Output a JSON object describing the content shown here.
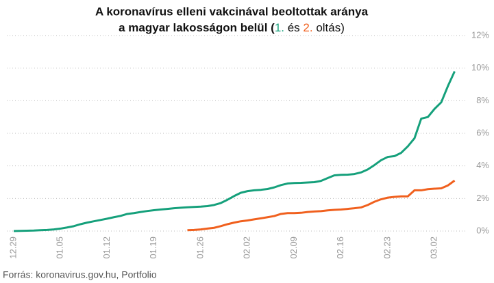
{
  "chart_data": {
    "type": "line",
    "title": [
      "A koronavírus elleni vakcinával beoltottak aránya",
      "a magyar lakosságon belül (",
      "1.",
      " és ",
      "2.",
      " oltás)"
    ],
    "source": "Forrás: koronavirus.gov.hu, Portfolio",
    "categories": [
      "12.29",
      null,
      null,
      null,
      null,
      null,
      null,
      "01.05",
      null,
      null,
      null,
      null,
      null,
      null,
      "01.12",
      null,
      null,
      null,
      null,
      null,
      null,
      "01.19",
      null,
      null,
      null,
      null,
      null,
      null,
      "01.26",
      null,
      null,
      null,
      null,
      null,
      null,
      "02.02",
      null,
      null,
      null,
      null,
      null,
      null,
      "02.09",
      null,
      null,
      null,
      null,
      null,
      null,
      "02.16",
      null,
      null,
      null,
      null,
      null,
      null,
      "02.23",
      null,
      null,
      null,
      null,
      null,
      null,
      "03.02",
      null,
      null,
      null
    ],
    "series": [
      {
        "name": "1.",
        "color": "#15a07b",
        "values": [
          0,
          0.01,
          0.02,
          0.03,
          0.05,
          0.07,
          0.1,
          0.15,
          0.22,
          0.3,
          0.42,
          0.52,
          0.6,
          0.68,
          0.76,
          0.85,
          0.93,
          1.05,
          1.1,
          1.17,
          1.23,
          1.28,
          1.32,
          1.36,
          1.4,
          1.43,
          1.46,
          1.48,
          1.5,
          1.53,
          1.6,
          1.72,
          1.92,
          2.15,
          2.35,
          2.45,
          2.5,
          2.53,
          2.58,
          2.68,
          2.82,
          2.92,
          2.95,
          2.96,
          2.98,
          3.0,
          3.08,
          3.25,
          3.42,
          3.45,
          3.46,
          3.5,
          3.6,
          3.78,
          4.05,
          4.35,
          4.55,
          4.6,
          4.8,
          5.2,
          5.7,
          6.9,
          7.0,
          7.5,
          7.9,
          8.9,
          9.8
        ]
      },
      {
        "name": "2.",
        "color": "#f0601e",
        "values": [
          null,
          null,
          null,
          null,
          null,
          null,
          null,
          null,
          null,
          null,
          null,
          null,
          null,
          null,
          null,
          null,
          null,
          null,
          null,
          null,
          null,
          null,
          null,
          null,
          null,
          null,
          0.05,
          0.07,
          0.1,
          0.15,
          0.2,
          0.3,
          0.42,
          0.52,
          0.6,
          0.65,
          0.72,
          0.78,
          0.85,
          0.92,
          1.05,
          1.1,
          1.1,
          1.12,
          1.17,
          1.2,
          1.22,
          1.27,
          1.3,
          1.32,
          1.36,
          1.4,
          1.45,
          1.6,
          1.8,
          1.95,
          2.05,
          2.1,
          2.13,
          2.13,
          2.5,
          2.5,
          2.57,
          2.6,
          2.62,
          2.8,
          3.1
        ]
      }
    ],
    "ylim": [
      0,
      12
    ],
    "yticks": [
      {
        "value": 0,
        "label": "0%"
      },
      {
        "value": 2,
        "label": "2%"
      },
      {
        "value": 4,
        "label": "4%"
      },
      {
        "value": 6,
        "label": "6%"
      },
      {
        "value": 8,
        "label": "8%"
      },
      {
        "value": 10,
        "label": "10%"
      },
      {
        "value": 12,
        "label": "12%"
      }
    ],
    "grid": true
  }
}
